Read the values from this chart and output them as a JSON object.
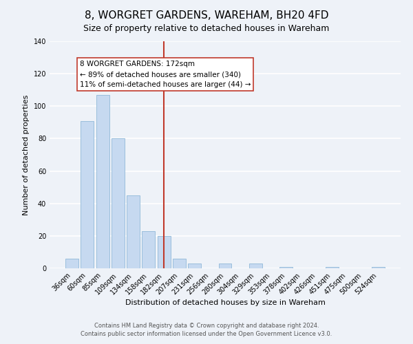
{
  "title": "8, WORGRET GARDENS, WAREHAM, BH20 4FD",
  "subtitle": "Size of property relative to detached houses in Wareham",
  "xlabel": "Distribution of detached houses by size in Wareham",
  "ylabel": "Number of detached properties",
  "bar_labels": [
    "36sqm",
    "60sqm",
    "85sqm",
    "109sqm",
    "134sqm",
    "158sqm",
    "182sqm",
    "207sqm",
    "231sqm",
    "256sqm",
    "280sqm",
    "304sqm",
    "329sqm",
    "353sqm",
    "378sqm",
    "402sqm",
    "426sqm",
    "451sqm",
    "475sqm",
    "500sqm",
    "524sqm"
  ],
  "bar_values": [
    6,
    91,
    107,
    80,
    45,
    23,
    20,
    6,
    3,
    0,
    3,
    0,
    3,
    0,
    1,
    0,
    0,
    1,
    0,
    0,
    1
  ],
  "bar_color": "#c6d9f0",
  "bar_edge_color": "#8fb8d8",
  "ylim": [
    0,
    140
  ],
  "yticks": [
    0,
    20,
    40,
    60,
    80,
    100,
    120,
    140
  ],
  "annotation_title": "8 WORGRET GARDENS: 172sqm",
  "annotation_line1": "← 89% of detached houses are smaller (340)",
  "annotation_line2": "11% of semi-detached houses are larger (44) →",
  "vline_x": 6.0,
  "footer_line1": "Contains HM Land Registry data © Crown copyright and database right 2024.",
  "footer_line2": "Contains public sector information licensed under the Open Government Licence v3.0.",
  "background_color": "#eef2f8",
  "plot_background": "#eef2f8",
  "grid_color": "#ffffff",
  "vline_color": "#c0392b",
  "annotation_box_color": "#ffffff",
  "annotation_box_edge": "#c0392b",
  "title_fontsize": 11,
  "subtitle_fontsize": 9,
  "label_fontsize": 8,
  "tick_fontsize": 7,
  "footer_fontsize": 6,
  "annotation_fontsize": 7.5
}
